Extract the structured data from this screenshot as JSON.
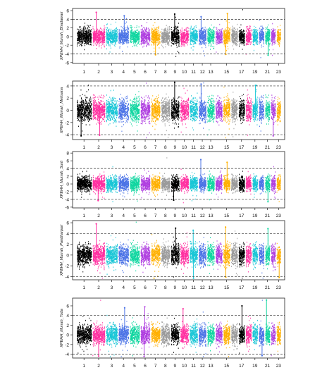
{
  "chart_data": [
    {
      "type": "scatter",
      "ylabel": "XPEHH_Murrah_Bhadawari",
      "yticks": [
        -6,
        -4,
        -2,
        0,
        2,
        4,
        6
      ],
      "ylim": [
        -6.2,
        6.5
      ],
      "thresholds": [
        -4,
        4
      ],
      "x_ticks": [
        "1",
        "2",
        "3",
        "4",
        "5",
        "6",
        "7",
        "8",
        "9",
        "10",
        "11",
        "12",
        "13",
        "15",
        "17",
        "19",
        "21",
        "23"
      ],
      "chromosomes": 23,
      "band_sd": 0.85,
      "peaks": [
        {
          "chr": 2,
          "y": 5.6
        },
        {
          "chr": 4,
          "y": 4.8
        },
        {
          "chr": 9,
          "y": 5.2
        },
        {
          "chr": 12,
          "y": 4.6
        },
        {
          "chr": 15,
          "y": 5.3
        },
        {
          "chr": 7,
          "y": -4.2
        },
        {
          "chr": 15,
          "y": -4.1
        },
        {
          "chr": 21,
          "y": -4.3
        }
      ]
    },
    {
      "type": "scatter",
      "ylabel": "XPEHH_Murrah_Mehsana",
      "yticks": [
        -4,
        -2,
        0,
        2,
        4
      ],
      "ylim": [
        -4.8,
        4.8
      ],
      "thresholds": [
        -4,
        4
      ],
      "x_ticks": [
        "1",
        "2",
        "3",
        "4",
        "5",
        "6",
        "7",
        "8",
        "9",
        "10",
        "11",
        "12",
        "13",
        "15",
        "17",
        "19",
        "21",
        "23"
      ],
      "chromosomes": 23,
      "band_sd": 0.85,
      "peaks": [
        {
          "chr": 1,
          "y": -4.2
        },
        {
          "chr": 2,
          "y": -4.1
        },
        {
          "chr": 9,
          "y": 4.6
        },
        {
          "chr": 12,
          "y": 4.3
        },
        {
          "chr": 19,
          "y": 4.1
        },
        {
          "chr": 22,
          "y": -4.2
        }
      ]
    },
    {
      "type": "scatter",
      "ylabel": "XPEHH_Murrah_Surti",
      "yticks": [
        -6,
        -4,
        -2,
        0,
        2,
        4,
        6,
        8
      ],
      "ylim": [
        -6.2,
        8.4
      ],
      "thresholds": [
        -4,
        4
      ],
      "x_ticks": [
        "1",
        "2",
        "3",
        "4",
        "5",
        "6",
        "7",
        "8",
        "9",
        "10",
        "11",
        "12",
        "13",
        "15",
        "17",
        "19",
        "21",
        "23"
      ],
      "chromosomes": 23,
      "band_sd": 0.85,
      "peaks": [
        {
          "chr": 12,
          "y": 6.3
        },
        {
          "chr": 15,
          "y": 5.6
        },
        {
          "chr": 2,
          "y": -4.3
        },
        {
          "chr": 9,
          "y": -4.2
        },
        {
          "chr": 21,
          "y": -4.6
        }
      ]
    },
    {
      "type": "scatter",
      "ylabel": "XPEHH_Murrah_Pandharpuri",
      "yticks": [
        -4,
        -2,
        0,
        2,
        4,
        6
      ],
      "ylim": [
        -4.6,
        6.4
      ],
      "thresholds": [
        -4,
        4
      ],
      "x_ticks": [
        "1",
        "2",
        "3",
        "4",
        "5",
        "6",
        "7",
        "8",
        "9",
        "10",
        "11",
        "12",
        "13",
        "15",
        "17",
        "19",
        "21",
        "23"
      ],
      "chromosomes": 23,
      "band_sd": 0.85,
      "peaks": [
        {
          "chr": 2,
          "y": 5.8
        },
        {
          "chr": 9,
          "y": 5.0
        },
        {
          "chr": 11,
          "y": 4.6
        },
        {
          "chr": 15,
          "y": 5.2
        },
        {
          "chr": 21,
          "y": 4.9
        },
        {
          "chr": 11,
          "y": -4.3
        },
        {
          "chr": 15,
          "y": -4.1
        },
        {
          "chr": 23,
          "y": -4.2
        }
      ]
    },
    {
      "type": "scatter",
      "ylabel": "XPEHH_Murrah_Toda",
      "yticks": [
        -4,
        -2,
        0,
        2,
        4,
        6
      ],
      "ylim": [
        -4.8,
        7.6
      ],
      "thresholds": [
        -4,
        4
      ],
      "x_ticks": [
        "1",
        "2",
        "3",
        "4",
        "5",
        "6",
        "7",
        "8",
        "9",
        "10",
        "11",
        "12",
        "13",
        "15",
        "17",
        "19",
        "21",
        "23"
      ],
      "chromosomes": 23,
      "band_sd": 0.9,
      "peaks": [
        {
          "chr": 21,
          "y": 7.2
        },
        {
          "chr": 17,
          "y": 6.0
        },
        {
          "chr": 6,
          "y": 5.8
        },
        {
          "chr": 10,
          "y": 5.4
        },
        {
          "chr": 4,
          "y": 5.6
        },
        {
          "chr": 2,
          "y": -4.4
        },
        {
          "chr": 6,
          "y": -4.5
        },
        {
          "chr": 20,
          "y": -4.3
        }
      ]
    }
  ],
  "colors": [
    "#000000",
    "#ff2fa0",
    "#19c6d6",
    "#4b73e6",
    "#10d6a0",
    "#b040e0",
    "#ffb000",
    "#9a9a9a"
  ]
}
